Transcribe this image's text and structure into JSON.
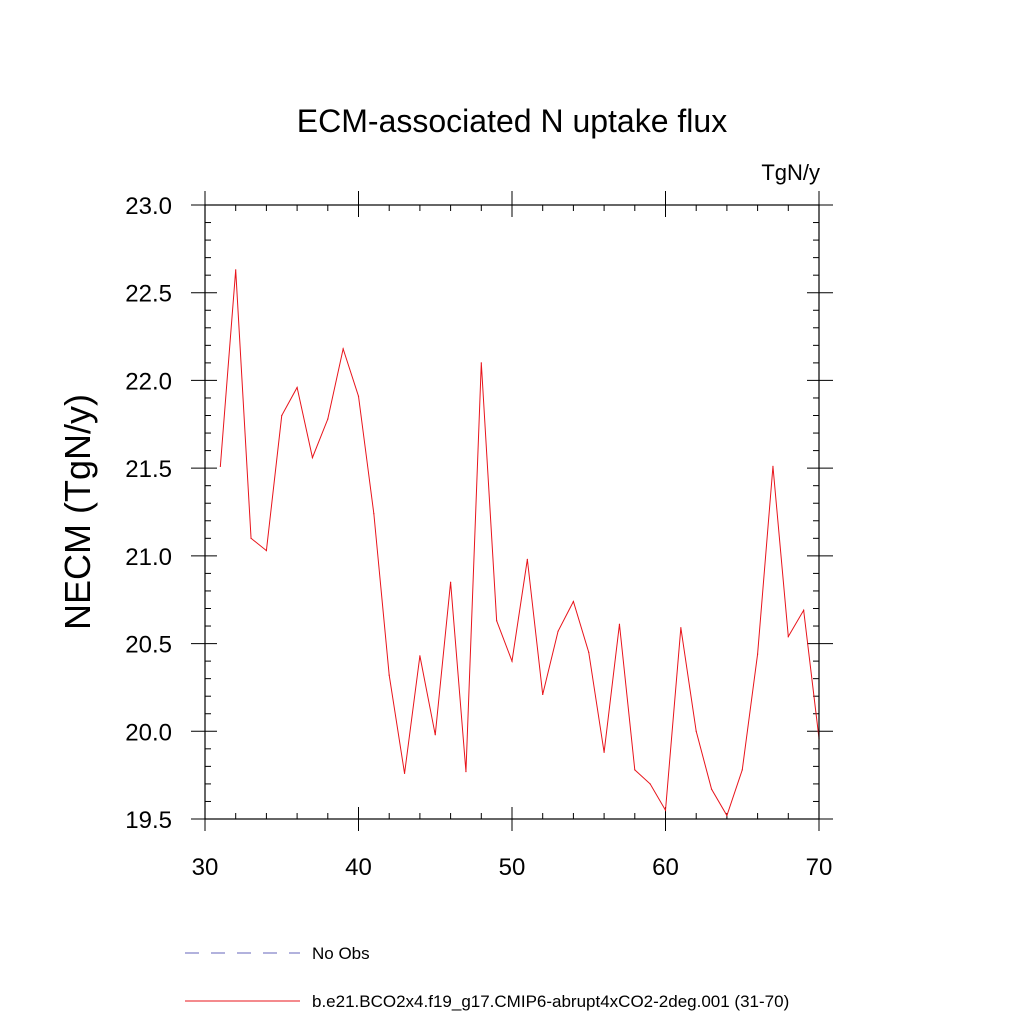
{
  "chart_data": {
    "type": "line",
    "title": "ECM-associated N uptake flux",
    "units": "TgN/y",
    "xlabel": "",
    "ylabel": "NECM  (TgN/y)",
    "xlim": [
      30,
      70
    ],
    "ylim": [
      19.5,
      23.0
    ],
    "x_ticks": [
      30,
      40,
      50,
      60,
      70
    ],
    "x_tick_labels": [
      "30",
      "40",
      "50",
      "60",
      "70"
    ],
    "y_ticks": [
      19.5,
      20.0,
      20.5,
      21.0,
      21.5,
      22.0,
      22.5,
      23.0
    ],
    "y_tick_labels": [
      "19.5",
      "20.0",
      "20.5",
      "21.0",
      "21.5",
      "22.0",
      "22.5",
      "23.0"
    ],
    "grid": false,
    "legend_position": "bottom",
    "series": [
      {
        "name": "b.e21.BCO2x4.f19_g17.CMIP6-abrupt4xCO2-2deg.001 (31-70)",
        "color": "#e8141b",
        "style": "solid",
        "x": [
          31,
          32,
          33,
          34,
          35,
          36,
          37,
          38,
          39,
          40,
          41,
          42,
          43,
          44,
          45,
          46,
          47,
          48,
          49,
          50,
          51,
          52,
          53,
          54,
          55,
          56,
          57,
          58,
          59,
          60,
          61,
          62,
          63,
          64,
          65,
          66,
          67,
          68,
          69,
          70
        ],
        "values": [
          21.51,
          22.63,
          21.1,
          21.03,
          21.8,
          21.96,
          21.56,
          21.78,
          22.18,
          21.91,
          21.24,
          20.32,
          19.76,
          20.43,
          19.98,
          20.85,
          19.77,
          22.1,
          20.63,
          20.4,
          20.98,
          20.21,
          20.57,
          20.74,
          20.45,
          19.88,
          20.61,
          19.78,
          19.7,
          19.55,
          20.59,
          20.0,
          19.67,
          19.52,
          19.78,
          20.44,
          21.51,
          20.54,
          20.69,
          19.96
        ]
      }
    ],
    "legend": [
      {
        "name": "No Obs",
        "color": "#6666bb",
        "style": "dashed"
      },
      {
        "name": "b.e21.BCO2x4.f19_g17.CMIP6-abrupt4xCO2-2deg.001 (31-70)",
        "color": "#e8141b",
        "style": "solid"
      }
    ]
  }
}
